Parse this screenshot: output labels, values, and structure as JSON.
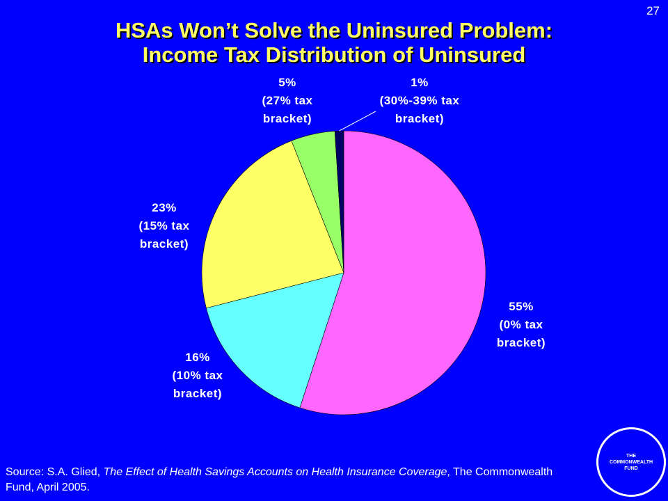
{
  "page_number": "27",
  "chart_data": {
    "type": "pie",
    "title": [
      "HSAs Won’t Solve the Uninsured Problem:",
      "Income Tax Distribution of Uninsured"
    ],
    "categories": [
      "(0% tax bracket)",
      "(10% tax bracket)",
      "(15% tax bracket)",
      "(27% tax bracket)",
      "(30%-39% tax bracket)"
    ],
    "values": [
      55,
      16,
      23,
      5,
      1
    ],
    "value_labels": [
      "55%",
      "16%",
      "23%",
      "5%",
      "1%"
    ],
    "colors": [
      "#ff66ff",
      "#66ffff",
      "#ffff66",
      "#99ff66",
      "#000066"
    ]
  },
  "source": {
    "prefix": "Source: S.A. Glied, ",
    "title": "The Effect of Health Savings Accounts on Health Insurance Coverage",
    "suffix": ", The Commonwealth Fund, April 2005."
  },
  "logo": [
    "THE",
    "COMMONWEALTH",
    "FUND"
  ]
}
